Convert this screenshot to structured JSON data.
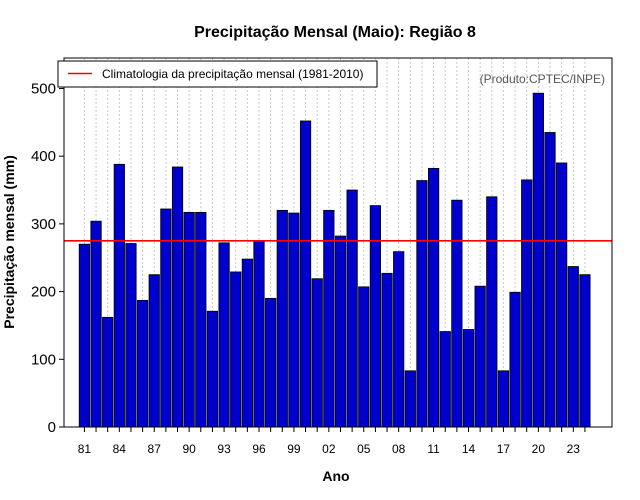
{
  "chart_data": {
    "type": "bar",
    "title": "Precipitação Mensal (Maio): Região 8",
    "xlabel": "Ano",
    "ylabel": "Precipitação mensal (mm)",
    "ylim": [
      0,
      545
    ],
    "yticks": [
      0,
      100,
      200,
      300,
      400,
      500
    ],
    "categories": [
      "81",
      "82",
      "83",
      "84",
      "85",
      "86",
      "87",
      "88",
      "89",
      "90",
      "91",
      "92",
      "93",
      "94",
      "95",
      "96",
      "97",
      "98",
      "99",
      "00",
      "01",
      "02",
      "03",
      "04",
      "05",
      "06",
      "07",
      "08",
      "09",
      "10",
      "11",
      "12",
      "13",
      "14",
      "15",
      "16",
      "17",
      "18",
      "19",
      "20",
      "21",
      "22",
      "23",
      "24"
    ],
    "xtick_labels": [
      "81",
      "84",
      "87",
      "90",
      "93",
      "96",
      "99",
      "02",
      "05",
      "08",
      "11",
      "14",
      "17",
      "20",
      "23"
    ],
    "values": [
      270,
      304,
      162,
      388,
      271,
      187,
      225,
      322,
      384,
      317,
      317,
      171,
      272,
      229,
      248,
      275,
      190,
      320,
      316,
      452,
      219,
      320,
      282,
      350,
      207,
      327,
      227,
      259,
      83,
      364,
      382,
      141,
      335,
      144,
      208,
      340,
      83,
      199,
      365,
      493,
      435,
      390,
      237,
      225
    ],
    "bar_color": "#0000CD",
    "climatology": {
      "value": 275,
      "color": "#FF0000",
      "label": "Climatologia da precipitação mensal (1981-2010)"
    },
    "legend_position": "top-left",
    "credit": "(Produto:CPTEC/INPE)",
    "grid": "vertical-dotted"
  }
}
